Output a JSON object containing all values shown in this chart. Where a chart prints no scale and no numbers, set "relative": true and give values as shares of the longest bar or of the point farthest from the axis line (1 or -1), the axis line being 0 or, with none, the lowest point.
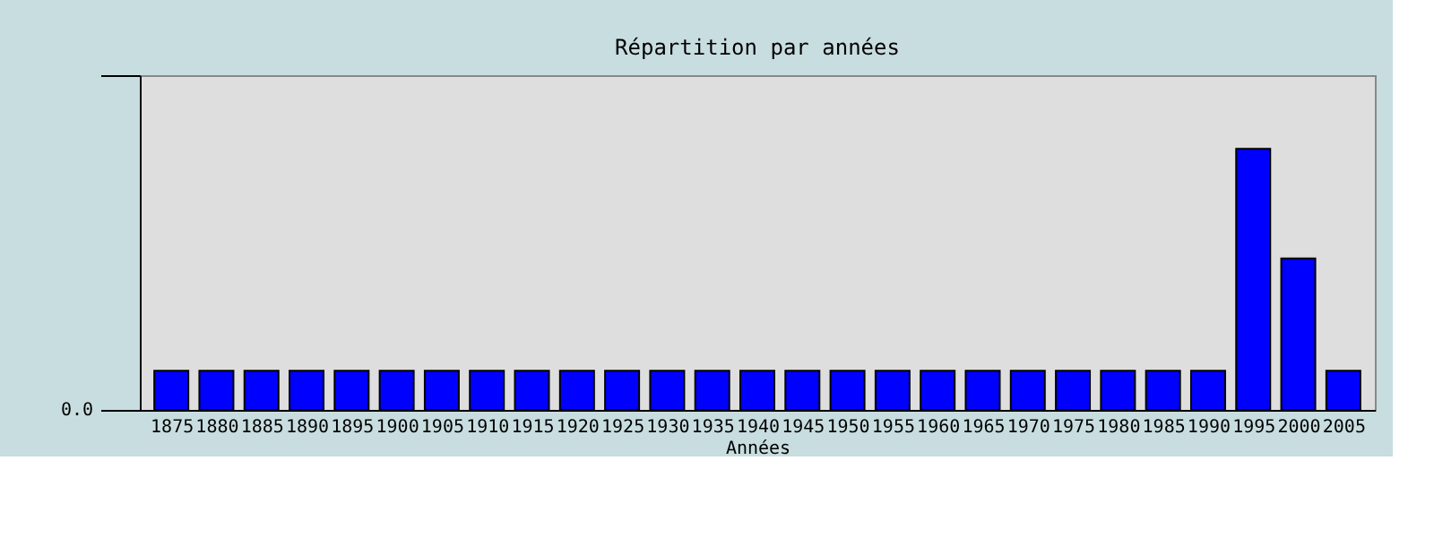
{
  "chart_data": {
    "type": "bar",
    "title": "Répartition par années",
    "xlabel": "Années",
    "categories": [
      "1875",
      "1880",
      "1885",
      "1890",
      "1895",
      "1900",
      "1905",
      "1910",
      "1915",
      "1920",
      "1925",
      "1930",
      "1935",
      "1940",
      "1945",
      "1950",
      "1955",
      "1960",
      "1965",
      "1970",
      "1975",
      "1980",
      "1985",
      "1990",
      "1995",
      "2000",
      "2005"
    ],
    "values": [
      0.15,
      0.15,
      0.15,
      0.15,
      0.15,
      0.15,
      0.15,
      0.15,
      0.15,
      0.15,
      0.15,
      0.15,
      0.15,
      0.15,
      0.15,
      0.15,
      0.15,
      0.15,
      0.15,
      0.15,
      0.15,
      0.15,
      0.15,
      0.15,
      1,
      0.58,
      0.15
    ],
    "color": "#0000ff",
    "relative": true,
    "grid": false,
    "annotations": [
      "0.0"
    ]
  }
}
